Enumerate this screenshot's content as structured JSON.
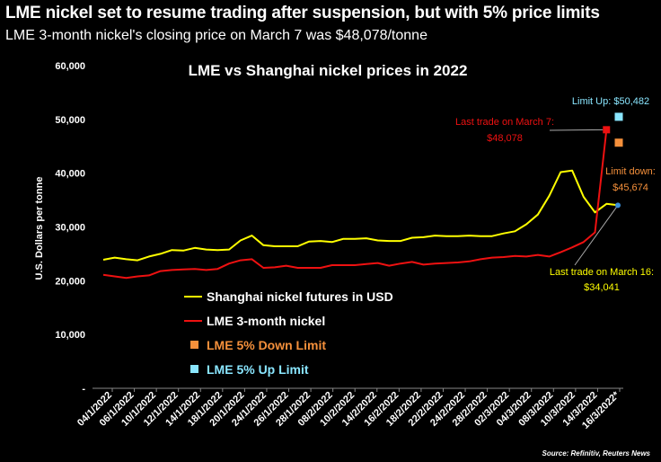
{
  "header": {
    "headline": "LME nickel set to resume trading after suspension, but with 5% price limits",
    "subhead": "LME 3-month nickel's closing price on March 7 was $48,078/tonne"
  },
  "colors": {
    "background": "#000000",
    "shanghai": "#ffff00",
    "lme": "#ee1111",
    "down_limit": "#f5903b",
    "up_limit": "#8ae6ff",
    "axis_text": "#ffffff",
    "leader": "#aaaaaa"
  },
  "chart_data": {
    "type": "line",
    "title": "LME vs Shanghai nickel prices in 2022",
    "ylabel": "U.S. Dollars per tonne",
    "xlabel": "",
    "ylim": [
      0,
      60000
    ],
    "yticks": [
      {
        "value": 0,
        "label": "-"
      },
      {
        "value": 10000,
        "label": "10,000"
      },
      {
        "value": 20000,
        "label": "20,000"
      },
      {
        "value": 30000,
        "label": "30,000"
      },
      {
        "value": 40000,
        "label": "40,000"
      },
      {
        "value": 50000,
        "label": "50,000"
      },
      {
        "value": 60000,
        "label": "60,000"
      }
    ],
    "grid": false,
    "legend_position": "bottom-left",
    "x_tick_labels": [
      "04/1/2022",
      "06/1/2022",
      "10/1/2022",
      "12/1/2022",
      "14/1/2022",
      "18/1/2022",
      "20/1/2022",
      "24/1/2022",
      "26/1/2022",
      "28/1/2022",
      "08/2/2022",
      "10/2/2022",
      "14/2/2022",
      "16/2/2022",
      "18/2/2022",
      "22/2/2022",
      "24/2/2022",
      "28/2/2022",
      "02/3/2022",
      "04/3/2022",
      "08/3/2022",
      "10/3/2022",
      "14/3/2022",
      "16/3/2022*"
    ],
    "series": [
      {
        "name": "Shanghai nickel futures in USD",
        "color": "#ffff00",
        "values": [
          23900,
          24300,
          24000,
          23800,
          24500,
          25000,
          25700,
          25600,
          26100,
          25800,
          25700,
          25800,
          27500,
          28400,
          26600,
          26400,
          26400,
          26400,
          27300,
          27400,
          27200,
          27800,
          27800,
          27900,
          27500,
          27400,
          27400,
          28000,
          28100,
          28400,
          28300,
          28300,
          28400,
          28300,
          28300,
          28800,
          29200,
          30500,
          32300,
          35800,
          40200,
          40500,
          35600,
          32700,
          34300,
          34041
        ]
      },
      {
        "name": "LME 3-month nickel",
        "color": "#ee1111",
        "values": [
          21100,
          20800,
          20500,
          20800,
          21000,
          21800,
          22000,
          22100,
          22200,
          22000,
          22200,
          23200,
          23800,
          24000,
          22400,
          22500,
          22800,
          22400,
          22400,
          22400,
          22900,
          22900,
          22900,
          23100,
          23300,
          22800,
          23200,
          23500,
          23000,
          23200,
          23300,
          23400,
          23600,
          24000,
          24300,
          24400,
          24600,
          24500,
          24800,
          24500,
          25300,
          26200,
          27200,
          29000,
          48078,
          null
        ]
      }
    ],
    "markers": [
      {
        "name": "LME 5% Down Limit",
        "color": "#f5903b",
        "value": 45674
      },
      {
        "name": "LME 5% Up Limit",
        "color": "#8ae6ff",
        "value": 50482
      }
    ],
    "annotations": {
      "last_trade_mar7": {
        "line1": "Last trade on March 7:",
        "line2": "$48,078"
      },
      "limit_up": {
        "line1": "Limit Up: $50,482"
      },
      "limit_down": {
        "line1": "Limit down:",
        "line2": "$45,674"
      },
      "last_trade_mar16": {
        "line1": "Last trade on March 16:",
        "line2": "$34,041"
      }
    },
    "source": "Source: Refinitiv, Reuters News"
  }
}
